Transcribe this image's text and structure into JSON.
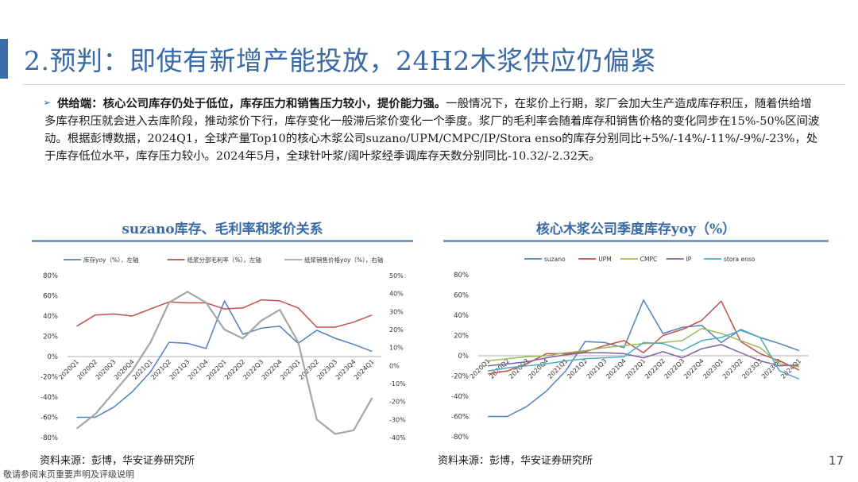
{
  "title": "2.预判：即使有新增产能投放，24H2木浆供应仍偏紧",
  "bullet": {
    "bold_text": "供给端：核心公司库存仍处于低位，库存压力和销售压力较小，提价能力强。",
    "body_text": "一般情况下，在浆价上行期，浆厂会加大生产造成库存积压，随着供给增多库存积压就会进入去库阶段，推动浆价下行，库存变化一般滞后浆价变化一个季度。浆厂的毛利率会随着库存和销售价格的变化同步在15%-50%区间波动。根据彭博数据，2024Q1，全球产量Top10的核心木浆公司suzano/UPM/CMPC/IP/Stora enso的库存分别同比+5%/-14%/-11%/-9%/-23%，处于库存低位水平，库存压力较小。2024年5月，全球针叶浆/阔叶浆经季调库存天数分别同比-10.32/-2.32天。"
  },
  "charts": {
    "left": {
      "title": "suzano库存、毛利率和浆价关系",
      "source": "资料来源：彭博，华安证券研究所"
    },
    "right": {
      "title": "核心木浆公司季度库存yoy（%）",
      "source": "资料来源：彭博，华安证券研究所"
    }
  },
  "page_number": "17",
  "disclaimer": "敬请参阅末页重要声明及评级说明",
  "chart_data": [
    {
      "type": "line",
      "title": "suzano库存、毛利率和浆价关系",
      "categories": [
        "2020Q1",
        "2020Q2",
        "2020Q3",
        "2020Q4",
        "2021Q1",
        "2021Q2",
        "2021Q3",
        "2021Q4",
        "2022Q1",
        "2022Q2",
        "2022Q3",
        "2022Q4",
        "2023Q1",
        "2023Q2",
        "2023Q3",
        "2023Q4",
        "2024Q1"
      ],
      "y_left": {
        "min": -80,
        "max": 80,
        "step": 20,
        "ticks": [
          "80%",
          "60%",
          "40%",
          "20%",
          "0%",
          "-20%",
          "-40%",
          "-60%",
          "-80%"
        ]
      },
      "y_right": {
        "min": -40,
        "max": 50,
        "step": 10,
        "ticks": [
          "50%",
          "40%",
          "30%",
          "20%",
          "10%",
          "0%",
          "-10%",
          "-20%",
          "-30%",
          "-40%"
        ]
      },
      "series": [
        {
          "name": "库存yoy（%），左轴",
          "color": "#4f81bd",
          "axis": "left",
          "values": [
            -60,
            -60,
            -50,
            -35,
            -15,
            14,
            13,
            8,
            55,
            22,
            28,
            30,
            13,
            26,
            18,
            12,
            5
          ]
        },
        {
          "name": "纸浆分部毛利率（%），左轴",
          "color": "#c0504d",
          "axis": "left",
          "values": [
            30,
            41,
            42,
            40,
            47,
            54,
            53,
            53,
            47,
            48,
            56,
            55,
            48,
            29,
            29,
            34,
            41
          ]
        },
        {
          "name": "纸浆销售价格yoy（%），右轴",
          "color": "#a6a6a6",
          "axis": "right",
          "values": [
            -35,
            -27,
            -15,
            -3,
            13,
            35,
            41,
            35,
            20,
            15,
            25,
            31,
            13,
            -30,
            -38,
            -36,
            -18
          ]
        }
      ]
    },
    {
      "type": "line",
      "title": "核心木浆公司季度库存yoy（%）",
      "categories": [
        "2020Q1",
        "2020Q2",
        "2020Q3",
        "2020Q4",
        "2021Q1",
        "2021Q2",
        "2021Q3",
        "2021Q4",
        "2022Q1",
        "2022Q2",
        "2022Q3",
        "2022Q4",
        "2023Q1",
        "2023Q2",
        "2023Q3",
        "2023Q4",
        "2024Q1"
      ],
      "y_left": {
        "min": -80,
        "max": 80,
        "step": 20,
        "ticks": [
          "80%",
          "60%",
          "40%",
          "20%",
          "0%",
          "-20%",
          "-40%",
          "-60%",
          "-80%"
        ]
      },
      "series": [
        {
          "name": "suzano",
          "color": "#4f81bd",
          "values": [
            -60,
            -60,
            -50,
            -35,
            -15,
            14,
            13,
            8,
            55,
            22,
            28,
            30,
            13,
            26,
            18,
            12,
            5
          ]
        },
        {
          "name": "UPM",
          "color": "#c0504d",
          "values": [
            -18,
            -15,
            -8,
            2,
            2,
            4,
            10,
            15,
            3,
            20,
            26,
            35,
            54,
            14,
            2,
            -5,
            -14
          ]
        },
        {
          "name": "CMPC",
          "color": "#9bbb59",
          "values": [
            -5,
            -3,
            -1,
            0,
            3,
            5,
            8,
            10,
            12,
            13,
            15,
            27,
            22,
            15,
            8,
            -8,
            -11
          ]
        },
        {
          "name": "IP",
          "color": "#8064a2",
          "values": [
            -10,
            -8,
            -6,
            -2,
            1,
            3,
            3,
            2,
            -2,
            4,
            -2,
            7,
            11,
            3,
            -5,
            -10,
            -9
          ]
        },
        {
          "name": "stora enso",
          "color": "#4bacc6",
          "values": [
            -15,
            -12,
            -10,
            -8,
            -5,
            -3,
            -2,
            -1,
            13,
            12,
            5,
            15,
            18,
            25,
            18,
            -15,
            -23
          ]
        }
      ]
    }
  ]
}
